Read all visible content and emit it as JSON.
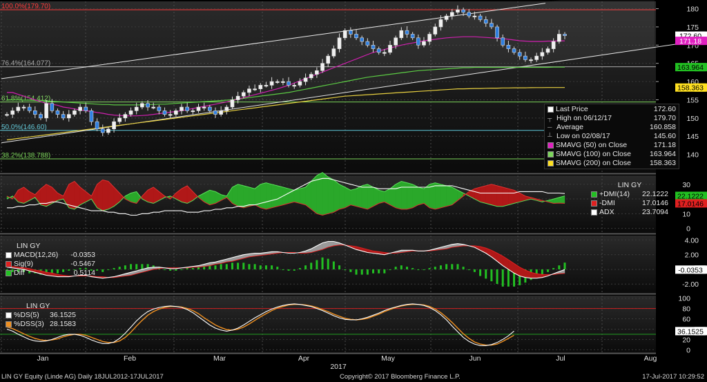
{
  "chart_data": {
    "type": "line",
    "title": "LIN GY Equity (Linde AG)",
    "x_labels": [
      "Jan",
      "Feb",
      "Mar",
      "Apr",
      "May",
      "Jun",
      "Jul",
      "Aug"
    ],
    "year_label": "2017",
    "price_panel": {
      "yticks": [
        140,
        145,
        150,
        155,
        160,
        165,
        170,
        175,
        180
      ],
      "ylim": [
        135,
        182
      ],
      "fib_levels": [
        {
          "label": "100.0%(179.70)",
          "value": 179.7,
          "color": "#ff3b3b"
        },
        {
          "label": "76.4%(164.077)",
          "value": 164.077,
          "color": "#aaaaaa"
        },
        {
          "label": "61.8%(154.412)",
          "value": 154.412,
          "color": "#7cd65a"
        },
        {
          "label": "50.0%(146.60)",
          "value": 146.6,
          "color": "#5cc8d8"
        },
        {
          "label": "38.2%(138.788)",
          "value": 138.788,
          "color": "#7cd65a"
        }
      ],
      "right_tags": [
        {
          "text": "172.60",
          "value": 172.6,
          "bg": "#ffffff",
          "fg": "#000000"
        },
        {
          "text": "171.18",
          "value": 171.18,
          "bg": "#e020c0",
          "fg": "#ffffff"
        },
        {
          "text": "163.964",
          "value": 163.964,
          "bg": "#22c022",
          "fg": "#000000"
        },
        {
          "text": "158.363",
          "value": 158.363,
          "bg": "#ffe020",
          "fg": "#000000"
        }
      ],
      "legend": [
        {
          "label": "Last Price",
          "value": "172.60",
          "color": "#ffffff"
        },
        {
          "label": "High on 06/12/17",
          "value": "179.70",
          "color": ""
        },
        {
          "label": "Average",
          "value": "160.858",
          "color": ""
        },
        {
          "label": "Low on 02/08/17",
          "value": "145.60",
          "color": ""
        },
        {
          "label": "SMAVG (50) on Close",
          "value": "171.18",
          "color": "#e020c0"
        },
        {
          "label": "SMAVG (100) on Close",
          "value": "163.964",
          "color": "#7cd65a"
        },
        {
          "label": "SMAVG (200) on Close",
          "value": "158.363",
          "color": "#ffe020"
        }
      ],
      "close": [
        151,
        152,
        153,
        153,
        152,
        151,
        150,
        154,
        152,
        151,
        150,
        151,
        152,
        153,
        152,
        149,
        147,
        146,
        147,
        149,
        150,
        151,
        152,
        153,
        154,
        153,
        153,
        152,
        151,
        151,
        152,
        153,
        152,
        152,
        153,
        153,
        152,
        151,
        152,
        153,
        155,
        156,
        157,
        158,
        158,
        159,
        159,
        160,
        160,
        160,
        159,
        159,
        160,
        161,
        162,
        163,
        165,
        167,
        169,
        172,
        174,
        173,
        172,
        171,
        170,
        169,
        168,
        168,
        170,
        172,
        174,
        173,
        172,
        170,
        171,
        173,
        175,
        177,
        178,
        179,
        179.7,
        179,
        178,
        178,
        177,
        176,
        175,
        172,
        170,
        169,
        168,
        167,
        166,
        166,
        167,
        168,
        169,
        171,
        173,
        172.6
      ],
      "sma50": [
        157,
        157,
        156.5,
        156,
        155.5,
        155,
        154.5,
        154,
        153.8,
        153.5,
        153,
        152.8,
        152.5,
        152.2,
        152,
        151.8,
        151.5,
        151.3,
        151,
        150.8,
        150.7,
        150.6,
        150.6,
        150.6,
        150.7,
        150.8,
        151,
        151.2,
        151.4,
        151.6,
        151.8,
        152,
        152.3,
        152.6,
        152.9,
        153.2,
        153.5,
        153.8,
        154.1,
        154.4,
        154.8,
        155.2,
        155.6,
        156,
        156.4,
        156.8,
        157.2,
        157.6,
        158,
        158.5,
        159,
        159.6,
        160.2,
        160.8,
        161.4,
        162,
        162.6,
        163.2,
        163.8,
        164.4,
        165,
        165.6,
        166.2,
        166.8,
        167.4,
        168,
        168.4,
        168.8,
        169.2,
        169.6,
        170,
        170.3,
        170.6,
        170.9,
        171.2,
        171.4,
        171.6,
        171.8,
        172,
        172.1,
        172.2,
        172.3,
        172.3,
        172.3,
        172.2,
        172.1,
        172,
        171.9,
        171.8,
        171.6,
        171.4,
        171.2,
        171.1,
        171,
        171,
        171,
        171.1,
        171.1,
        171.2,
        171.18
      ],
      "sma100": [
        155,
        155,
        155,
        154.9,
        154.9,
        154.8,
        154.8,
        154.7,
        154.6,
        154.5,
        154.4,
        154.3,
        154.2,
        154.1,
        154,
        153.9,
        153.8,
        153.7,
        153.7,
        153.6,
        153.6,
        153.6,
        153.6,
        153.6,
        153.6,
        153.7,
        153.7,
        153.8,
        153.8,
        153.9,
        154,
        154.1,
        154.2,
        154.3,
        154.4,
        154.5,
        154.6,
        154.7,
        154.8,
        154.9,
        155,
        155.2,
        155.4,
        155.6,
        155.8,
        156,
        156.2,
        156.4,
        156.6,
        156.8,
        157,
        157.3,
        157.6,
        157.9,
        158.2,
        158.5,
        158.8,
        159.1,
        159.4,
        159.7,
        160,
        160.3,
        160.6,
        160.9,
        161.2,
        161.4,
        161.6,
        161.8,
        162,
        162.2,
        162.4,
        162.6,
        162.8,
        163,
        163.1,
        163.2,
        163.3,
        163.4,
        163.5,
        163.6,
        163.7,
        163.8,
        163.8,
        163.9,
        163.9,
        163.9,
        163.9,
        163.9,
        163.9,
        163.9,
        163.9,
        163.9,
        163.9,
        163.9,
        163.9,
        163.9,
        163.9,
        163.95,
        163.96,
        163.964
      ],
      "sma200": [
        144,
        144.2,
        144.4,
        144.6,
        144.8,
        145,
        145.2,
        145.4,
        145.6,
        145.8,
        146,
        146.2,
        146.4,
        146.6,
        146.8,
        147,
        147.2,
        147.4,
        147.6,
        147.8,
        148,
        148.2,
        148.4,
        148.6,
        148.8,
        149,
        149.2,
        149.4,
        149.6,
        149.8,
        150,
        150.2,
        150.4,
        150.6,
        150.8,
        151,
        151.2,
        151.4,
        151.6,
        151.8,
        152,
        152.2,
        152.4,
        152.6,
        152.8,
        153,
        153.2,
        153.4,
        153.6,
        153.8,
        154,
        154.2,
        154.4,
        154.6,
        154.8,
        155,
        155.2,
        155.4,
        155.6,
        155.8,
        156,
        156.1,
        156.2,
        156.3,
        156.4,
        156.5,
        156.6,
        156.7,
        156.8,
        156.9,
        157,
        157.1,
        157.2,
        157.3,
        157.4,
        157.5,
        157.6,
        157.7,
        157.8,
        157.9,
        158,
        158,
        158.05,
        158.1,
        158.1,
        158.15,
        158.2,
        158.2,
        158.25,
        158.25,
        158.3,
        158.3,
        158.3,
        158.33,
        158.34,
        158.35,
        158.36,
        158.36,
        158.363,
        158.363
      ]
    },
    "dmi_panel": {
      "title": "LIN GY",
      "yticks": [
        0,
        10,
        20,
        30
      ],
      "ylim": [
        -3,
        36
      ],
      "legend": [
        {
          "label": "+DMI(14)",
          "value": "22.1222",
          "color": "#22c022"
        },
        {
          "label": "-DMI",
          "value": "17.0146",
          "color": "#e02020"
        },
        {
          "label": "ADX",
          "value": "23.7094",
          "color": "#ffffff"
        }
      ],
      "right_tags": [
        {
          "text": "22.1222",
          "value": 22.1222,
          "bg": "#22c022",
          "fg": "#000000"
        },
        {
          "text": "17.0146",
          "value": 17.0146,
          "bg": "#e02020",
          "fg": "#000000"
        }
      ],
      "plus_dmi": [
        20,
        22,
        18,
        17,
        19,
        21,
        16,
        15,
        17,
        19,
        20,
        14,
        13,
        16,
        18,
        20,
        14,
        12,
        13,
        15,
        18,
        22,
        24,
        25,
        20,
        18,
        17,
        19,
        21,
        22,
        20,
        18,
        17,
        19,
        22,
        24,
        26,
        25,
        23,
        22,
        28,
        30,
        29,
        28,
        27,
        30,
        31,
        30,
        29,
        28,
        27,
        26,
        27,
        28,
        32,
        36,
        38,
        35,
        33,
        30,
        28,
        26,
        27,
        29,
        30,
        28,
        26,
        25,
        27,
        30,
        32,
        31,
        30,
        28,
        27,
        30,
        31,
        30,
        29,
        28,
        26,
        24,
        22,
        20,
        18,
        17,
        16,
        15,
        15,
        16,
        17,
        18,
        19,
        20,
        19,
        18,
        19,
        20,
        21,
        22.1
      ],
      "minus_dmi": [
        22,
        20,
        26,
        28,
        25,
        23,
        27,
        30,
        28,
        24,
        22,
        30,
        32,
        28,
        25,
        22,
        30,
        33,
        32,
        28,
        24,
        20,
        18,
        17,
        22,
        26,
        28,
        25,
        22,
        20,
        24,
        27,
        29,
        25,
        21,
        18,
        16,
        17,
        19,
        21,
        17,
        15,
        14,
        15,
        16,
        14,
        13,
        14,
        15,
        16,
        17,
        18,
        17,
        16,
        13,
        10,
        9,
        10,
        11,
        13,
        14,
        16,
        15,
        14,
        13,
        15,
        17,
        18,
        16,
        14,
        13,
        13,
        14,
        16,
        17,
        14,
        13,
        14,
        15,
        16,
        19,
        22,
        25,
        27,
        28,
        29,
        30,
        29,
        28,
        27,
        26,
        24,
        22,
        21,
        20,
        19,
        18,
        17,
        17.2,
        17.0
      ],
      "adx": [
        14,
        14,
        15,
        15,
        16,
        16,
        17,
        17,
        18,
        18,
        17,
        16,
        15,
        14,
        13,
        12,
        12,
        12,
        11,
        11,
        10,
        10,
        9,
        9,
        10,
        10,
        11,
        11,
        12,
        12,
        12,
        12,
        11,
        11,
        11,
        12,
        12,
        13,
        13,
        14,
        14,
        15,
        15,
        16,
        16,
        17,
        18,
        19,
        20,
        22,
        24,
        26,
        28,
        30,
        32,
        33,
        34,
        34,
        33,
        32,
        31,
        30,
        29,
        28,
        28,
        28,
        27,
        27,
        27,
        27,
        28,
        28,
        28,
        28,
        28,
        28,
        29,
        29,
        29,
        29,
        28,
        27,
        26,
        25,
        24,
        24,
        24,
        24,
        24,
        24,
        24,
        25,
        25,
        25,
        25,
        25,
        24,
        24,
        24,
        23.7
      ]
    },
    "macd_panel": {
      "title": "LIN GY",
      "yticks": [
        -2,
        0,
        2,
        4
      ],
      "ytick_labels": [
        "-2.00",
        "0.00",
        "2.00",
        "4.00"
      ],
      "ylim": [
        -3.2,
        4.6
      ],
      "legend": [
        {
          "label": "MACD(12,26)",
          "value": "-0.0353",
          "color": "#ffffff"
        },
        {
          "label": "Sig(9)",
          "value": "-0.5467",
          "color": "#e02020"
        },
        {
          "label": "Diff",
          "value": "0.5114",
          "color": "#22c022"
        }
      ],
      "right_tags": [
        {
          "text": "-0.0353",
          "value": -0.0353,
          "bg": "#ffffff",
          "fg": "#000000"
        }
      ],
      "macd": [
        0.3,
        0.2,
        0.1,
        0,
        -0.2,
        -0.4,
        -0.6,
        -0.8,
        -0.9,
        -1,
        -1,
        -1,
        -0.9,
        -0.8,
        -0.8,
        -1,
        -1.1,
        -1.2,
        -1.1,
        -1,
        -0.8,
        -0.6,
        -0.4,
        -0.2,
        0,
        0.2,
        0.3,
        0.3,
        0.2,
        0.1,
        0.1,
        0.2,
        0.3,
        0.4,
        0.5,
        0.7,
        0.9,
        1,
        1.2,
        1.4,
        1.6,
        1.8,
        2,
        2.1,
        2.2,
        2.2,
        2.3,
        2.4,
        2.4,
        2.3,
        2.2,
        2.2,
        2.3,
        2.5,
        2.8,
        3.2,
        3.6,
        3.8,
        3.8,
        3.6,
        3.3,
        3,
        2.7,
        2.5,
        2.3,
        2.2,
        2.1,
        2,
        2.2,
        2.4,
        2.6,
        2.6,
        2.6,
        2.5,
        2.5,
        2.6,
        2.8,
        3,
        3.2,
        3.4,
        3.5,
        3.4,
        3.2,
        3,
        2.6,
        2.2,
        1.7,
        1.1,
        0.5,
        0,
        -0.5,
        -0.9,
        -1.1,
        -1.2,
        -1.2,
        -1.1,
        -0.9,
        -0.6,
        -0.3,
        -0.0353
      ],
      "signal": [
        0.5,
        0.4,
        0.3,
        0.2,
        0.1,
        -0.1,
        -0.2,
        -0.4,
        -0.5,
        -0.7,
        -0.8,
        -0.9,
        -0.9,
        -0.9,
        -0.9,
        -0.9,
        -1,
        -1,
        -1.1,
        -1.1,
        -1,
        -0.9,
        -0.8,
        -0.6,
        -0.4,
        -0.2,
        0,
        0.1,
        0.2,
        0.2,
        0.2,
        0.2,
        0.2,
        0.3,
        0.3,
        0.4,
        0.5,
        0.7,
        0.8,
        1,
        1.1,
        1.3,
        1.5,
        1.7,
        1.8,
        1.9,
        2,
        2.1,
        2.2,
        2.3,
        2.3,
        2.3,
        2.2,
        2.2,
        2.3,
        2.5,
        2.7,
        3,
        3.2,
        3.3,
        3.3,
        3.2,
        3.1,
        2.9,
        2.7,
        2.5,
        2.4,
        2.3,
        2.2,
        2.2,
        2.3,
        2.4,
        2.5,
        2.5,
        2.5,
        2.5,
        2.6,
        2.7,
        2.8,
        3,
        3.1,
        3.2,
        3.2,
        3.2,
        3.1,
        2.9,
        2.6,
        2.2,
        1.8,
        1.3,
        0.8,
        0.3,
        -0.1,
        -0.4,
        -0.6,
        -0.7,
        -0.7,
        -0.7,
        -0.6,
        -0.5467
      ]
    },
    "stoch_panel": {
      "title": "LIN GY",
      "yticks": [
        0,
        20,
        40,
        60,
        80,
        100
      ],
      "ylim": [
        -5,
        105
      ],
      "ref_lines": [
        {
          "value": 80,
          "color": "#d02020"
        },
        {
          "value": 30,
          "color": "#22a022"
        }
      ],
      "legend": [
        {
          "label": "%DS(5)",
          "value": "36.1525",
          "color": "#ffffff"
        },
        {
          "label": "%DSS(3)",
          "value": "28.1583",
          "color": "#f09020"
        }
      ],
      "right_tags": [
        {
          "text": "36.1525",
          "value": 36.1525,
          "bg": "#ffffff",
          "fg": "#000000"
        }
      ],
      "ds": [
        40,
        36,
        30,
        25,
        20,
        17,
        16,
        17,
        20,
        24,
        28,
        30,
        30,
        28,
        24,
        19,
        15,
        12,
        12,
        15,
        22,
        32,
        44,
        56,
        66,
        74,
        79,
        82,
        84,
        85,
        84,
        82,
        78,
        72,
        64,
        56,
        48,
        42,
        38,
        36,
        38,
        42,
        48,
        55,
        62,
        68,
        74,
        79,
        83,
        86,
        88,
        89,
        88,
        86,
        84,
        80,
        76,
        71,
        66,
        62,
        59,
        58,
        58,
        60,
        63,
        67,
        71,
        76,
        80,
        83,
        86,
        88,
        89,
        88,
        86,
        82,
        76,
        68,
        58,
        46,
        35,
        24,
        16,
        11,
        8,
        8,
        10,
        14,
        20,
        27,
        36.15
      ],
      "dss": [
        44,
        41,
        36,
        31,
        26,
        22,
        19,
        18,
        19,
        21,
        25,
        28,
        30,
        30,
        28,
        24,
        20,
        16,
        14,
        14,
        17,
        24,
        34,
        46,
        57,
        67,
        74,
        79,
        82,
        84,
        84,
        83,
        80,
        76,
        70,
        62,
        55,
        48,
        43,
        39,
        38,
        40,
        44,
        50,
        57,
        64,
        70,
        76,
        81,
        84,
        87,
        88,
        88,
        87,
        85,
        82,
        78,
        74,
        69,
        65,
        61,
        59,
        58,
        59,
        61,
        65,
        69,
        74,
        78,
        82,
        85,
        87,
        88,
        88,
        87,
        84,
        79,
        72,
        63,
        53,
        42,
        31,
        22,
        15,
        11,
        9,
        9,
        11,
        16,
        22,
        28.16
      ]
    },
    "footer_left": "LIN GY Equity (Linde AG)   Daily 18JUL2012-17JUL2017",
    "footer_center": "Copyright© 2017 Bloomberg Finance L.P.",
    "footer_right": "17-Jul-2017  10:29:52"
  }
}
